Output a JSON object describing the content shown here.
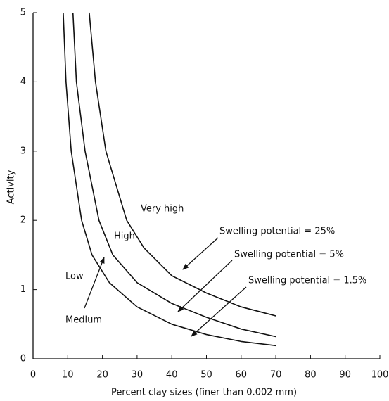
{
  "chart_data": {
    "type": "line",
    "x_label": "Percent clay sizes (finer than 0.002 mm)",
    "y_label": "Activity",
    "xlim": [
      0,
      100
    ],
    "ylim": [
      0,
      5
    ],
    "xticks": [
      0,
      10,
      20,
      30,
      40,
      50,
      60,
      70,
      80,
      90,
      100
    ],
    "yticks": [
      0,
      1,
      2,
      3,
      4,
      5
    ],
    "series": [
      {
        "name": "Swelling potential = 1.5%",
        "color": "#111111",
        "x": [
          8.7,
          9.5,
          11,
          14,
          17,
          22,
          30,
          40,
          50,
          60,
          70
        ],
        "values": [
          5,
          4,
          3,
          2,
          1.5,
          1.1,
          0.75,
          0.5,
          0.35,
          0.25,
          0.19
        ]
      },
      {
        "name": "Swelling potential = 5%",
        "color": "#111111",
        "x": [
          11.5,
          12.5,
          15,
          19,
          23,
          30,
          40,
          50,
          60,
          70
        ],
        "values": [
          5,
          4,
          3,
          2,
          1.5,
          1.1,
          0.8,
          0.6,
          0.43,
          0.32
        ]
      },
      {
        "name": "Swelling potential = 25%",
        "color": "#111111",
        "x": [
          16.2,
          18,
          21,
          27,
          32,
          40,
          50,
          60,
          70
        ],
        "values": [
          5,
          4,
          3,
          2,
          1.6,
          1.2,
          0.95,
          0.75,
          0.62
        ]
      }
    ],
    "annotations": [
      "Very high",
      "High",
      "Low",
      "Medium"
    ]
  }
}
